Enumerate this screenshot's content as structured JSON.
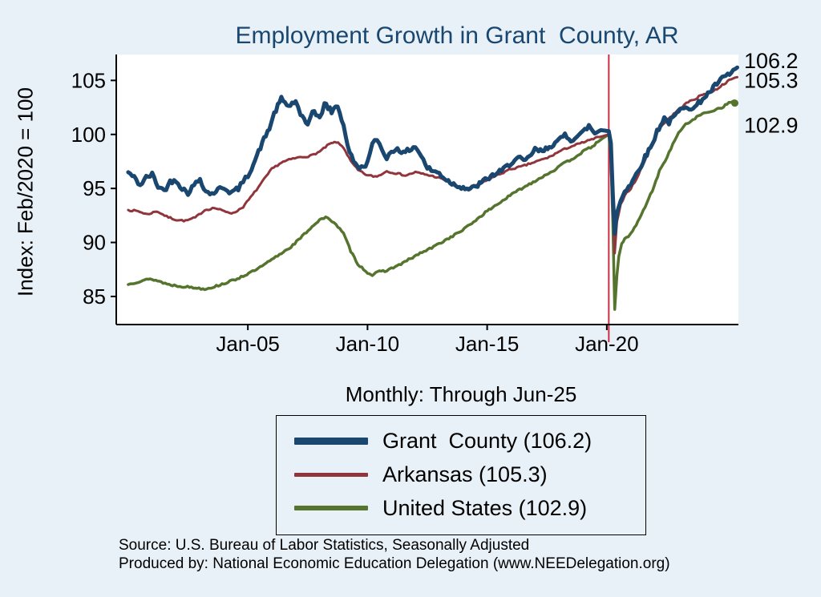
{
  "chart_data": {
    "type": "line",
    "title": "Employment Growth in Grant  County, AR",
    "subtitle": "Monthly: Through Jun-25",
    "ylabel": "Index: Feb/2020 = 100",
    "xlabel": "",
    "ylim": [
      82.4,
      107.4
    ],
    "xlim": [
      1999.5,
      2025.5
    ],
    "yticks": [
      85,
      90,
      95,
      100,
      105
    ],
    "xticks": [
      {
        "x": 2005,
        "label": "Jan-05"
      },
      {
        "x": 2010,
        "label": "Jan-10"
      },
      {
        "x": 2015,
        "label": "Jan-15"
      },
      {
        "x": 2020,
        "label": "Jan-20"
      }
    ],
    "grid": false,
    "legend_position": "bottom",
    "event_line": {
      "x": 2020.083,
      "color": "#cc2e44",
      "meaning": "Feb-2020 reference line"
    },
    "series": [
      {
        "name": "Grant  County",
        "legend_label": "Grant  County (106.2)",
        "end_label": "106.2",
        "end_value": 106.2,
        "color": "#1A476F",
        "width": 5,
        "noise": 0.22,
        "label_dy": -8,
        "points": [
          [
            2000.0,
            96.5
          ],
          [
            2000.25,
            96.0
          ],
          [
            2000.5,
            95.3
          ],
          [
            2000.75,
            96.0
          ],
          [
            2001.0,
            96.3
          ],
          [
            2001.25,
            95.2
          ],
          [
            2001.5,
            94.8
          ],
          [
            2001.75,
            95.6
          ],
          [
            2002.0,
            95.8
          ],
          [
            2002.25,
            95.0
          ],
          [
            2002.5,
            94.6
          ],
          [
            2002.75,
            95.3
          ],
          [
            2003.0,
            95.9
          ],
          [
            2003.25,
            94.7
          ],
          [
            2003.5,
            94.5
          ],
          [
            2003.75,
            94.9
          ],
          [
            2004.0,
            95.1
          ],
          [
            2004.3,
            94.6
          ],
          [
            2004.6,
            95.0
          ],
          [
            2004.8,
            95.6
          ],
          [
            2005.0,
            96.2
          ],
          [
            2005.3,
            97.6
          ],
          [
            2005.6,
            99.2
          ],
          [
            2005.9,
            100.6
          ],
          [
            2006.1,
            101.9
          ],
          [
            2006.4,
            103.3
          ],
          [
            2006.7,
            102.6
          ],
          [
            2007.0,
            103.1
          ],
          [
            2007.2,
            101.7
          ],
          [
            2007.5,
            100.9
          ],
          [
            2007.7,
            102.3
          ],
          [
            2008.0,
            101.4
          ],
          [
            2008.2,
            102.9
          ],
          [
            2008.5,
            102.1
          ],
          [
            2008.75,
            102.7
          ],
          [
            2009.0,
            100.8
          ],
          [
            2009.25,
            98.3
          ],
          [
            2009.5,
            97.2
          ],
          [
            2009.75,
            96.9
          ],
          [
            2010.0,
            97.4
          ],
          [
            2010.2,
            99.0
          ],
          [
            2010.4,
            99.6
          ],
          [
            2010.6,
            98.6
          ],
          [
            2010.8,
            97.9
          ],
          [
            2011.0,
            98.3
          ],
          [
            2011.25,
            98.8
          ],
          [
            2011.5,
            98.2
          ],
          [
            2011.75,
            98.6
          ],
          [
            2012.0,
            98.9
          ],
          [
            2012.25,
            98.0
          ],
          [
            2012.5,
            96.9
          ],
          [
            2012.75,
            96.6
          ],
          [
            2013.0,
            96.4
          ],
          [
            2013.3,
            95.8
          ],
          [
            2013.6,
            95.4
          ],
          [
            2014.0,
            95.1
          ],
          [
            2014.3,
            94.9
          ],
          [
            2014.6,
            95.3
          ],
          [
            2015.0,
            95.9
          ],
          [
            2015.3,
            96.3
          ],
          [
            2015.6,
            96.6
          ],
          [
            2016.0,
            97.4
          ],
          [
            2016.3,
            97.8
          ],
          [
            2016.6,
            97.5
          ],
          [
            2017.0,
            98.6
          ],
          [
            2017.3,
            98.4
          ],
          [
            2017.6,
            98.9
          ],
          [
            2018.0,
            99.4
          ],
          [
            2018.25,
            100.0
          ],
          [
            2018.5,
            99.5
          ],
          [
            2018.75,
            99.8
          ],
          [
            2019.0,
            100.2
          ],
          [
            2019.25,
            100.8
          ],
          [
            2019.5,
            100.1
          ],
          [
            2019.75,
            100.4
          ],
          [
            2020.083,
            100.3
          ],
          [
            2020.17,
            99.2
          ],
          [
            2020.25,
            94.5
          ],
          [
            2020.33,
            90.8
          ],
          [
            2020.42,
            92.7
          ],
          [
            2020.58,
            93.9
          ],
          [
            2020.75,
            94.8
          ],
          [
            2021.0,
            95.4
          ],
          [
            2021.3,
            96.6
          ],
          [
            2021.6,
            97.9
          ],
          [
            2021.9,
            99.1
          ],
          [
            2022.1,
            100.3
          ],
          [
            2022.4,
            101.5
          ],
          [
            2022.6,
            101.1
          ],
          [
            2023.0,
            102.1
          ],
          [
            2023.3,
            102.7
          ],
          [
            2023.6,
            102.3
          ],
          [
            2024.0,
            103.3
          ],
          [
            2024.3,
            103.9
          ],
          [
            2024.6,
            104.7
          ],
          [
            2024.9,
            105.3
          ],
          [
            2025.2,
            105.7
          ],
          [
            2025.45,
            106.2
          ]
        ]
      },
      {
        "name": "Arkansas",
        "legend_label": "Arkansas (105.3)",
        "end_label": "105.3",
        "end_value": 105.3,
        "color": "#90353B",
        "width": 3,
        "noise": 0.08,
        "label_dy": 4,
        "points": [
          [
            2000.0,
            93.0
          ],
          [
            2000.4,
            92.9
          ],
          [
            2000.8,
            92.6
          ],
          [
            2001.2,
            92.9
          ],
          [
            2001.6,
            92.4
          ],
          [
            2002.0,
            92.1
          ],
          [
            2002.4,
            92.0
          ],
          [
            2002.8,
            92.3
          ],
          [
            2003.2,
            93.0
          ],
          [
            2003.6,
            93.2
          ],
          [
            2004.0,
            92.9
          ],
          [
            2004.4,
            92.7
          ],
          [
            2004.8,
            93.3
          ],
          [
            2005.2,
            94.4
          ],
          [
            2005.6,
            95.6
          ],
          [
            2006.0,
            96.8
          ],
          [
            2006.4,
            97.4
          ],
          [
            2006.8,
            97.7
          ],
          [
            2007.2,
            97.9
          ],
          [
            2007.6,
            98.0
          ],
          [
            2008.0,
            98.4
          ],
          [
            2008.4,
            99.1
          ],
          [
            2008.7,
            99.3
          ],
          [
            2009.0,
            98.8
          ],
          [
            2009.3,
            97.5
          ],
          [
            2009.6,
            96.7
          ],
          [
            2010.0,
            96.2
          ],
          [
            2010.4,
            96.1
          ],
          [
            2010.8,
            96.6
          ],
          [
            2011.2,
            96.4
          ],
          [
            2011.6,
            96.2
          ],
          [
            2012.0,
            96.5
          ],
          [
            2012.4,
            96.3
          ],
          [
            2012.8,
            96.1
          ],
          [
            2013.2,
            95.8
          ],
          [
            2013.6,
            95.3
          ],
          [
            2014.0,
            95.0
          ],
          [
            2014.4,
            95.1
          ],
          [
            2014.8,
            95.5
          ],
          [
            2015.2,
            96.0
          ],
          [
            2015.6,
            96.4
          ],
          [
            2016.0,
            96.8
          ],
          [
            2016.4,
            97.0
          ],
          [
            2016.8,
            97.3
          ],
          [
            2017.2,
            97.6
          ],
          [
            2017.6,
            97.9
          ],
          [
            2018.0,
            98.4
          ],
          [
            2018.4,
            98.8
          ],
          [
            2018.8,
            99.1
          ],
          [
            2019.2,
            99.4
          ],
          [
            2019.6,
            99.7
          ],
          [
            2020.083,
            100.0
          ],
          [
            2020.17,
            99.0
          ],
          [
            2020.25,
            93.5
          ],
          [
            2020.33,
            89.0
          ],
          [
            2020.42,
            91.9
          ],
          [
            2020.58,
            93.5
          ],
          [
            2020.75,
            94.4
          ],
          [
            2021.0,
            95.0
          ],
          [
            2021.25,
            95.9
          ],
          [
            2021.5,
            97.2
          ],
          [
            2021.75,
            98.4
          ],
          [
            2022.0,
            99.6
          ],
          [
            2022.2,
            100.6
          ],
          [
            2022.5,
            101.3
          ],
          [
            2022.8,
            101.9
          ],
          [
            2023.1,
            102.5
          ],
          [
            2023.4,
            103.0
          ],
          [
            2023.7,
            103.3
          ],
          [
            2024.0,
            103.7
          ],
          [
            2024.3,
            103.9
          ],
          [
            2024.6,
            104.2
          ],
          [
            2024.9,
            104.7
          ],
          [
            2025.2,
            105.1
          ],
          [
            2025.45,
            105.3
          ]
        ]
      },
      {
        "name": "United States",
        "legend_label": "United States (102.9)",
        "end_label": "102.9",
        "end_value": 102.9,
        "color": "#55752F",
        "width": 3.5,
        "noise": 0.09,
        "label_dy": 28,
        "end_marker": [
          2025.45,
          102.9
        ],
        "points": [
          [
            2000.0,
            86.1
          ],
          [
            2000.3,
            86.3
          ],
          [
            2000.6,
            86.5
          ],
          [
            2001.0,
            86.6
          ],
          [
            2001.3,
            86.4
          ],
          [
            2001.7,
            86.1
          ],
          [
            2002.0,
            86.0
          ],
          [
            2002.4,
            85.9
          ],
          [
            2002.8,
            85.8
          ],
          [
            2003.2,
            85.7
          ],
          [
            2003.6,
            85.9
          ],
          [
            2004.0,
            86.2
          ],
          [
            2004.4,
            86.5
          ],
          [
            2004.8,
            86.9
          ],
          [
            2005.2,
            87.3
          ],
          [
            2005.6,
            87.8
          ],
          [
            2006.0,
            88.4
          ],
          [
            2006.4,
            89.0
          ],
          [
            2006.8,
            89.6
          ],
          [
            2007.2,
            90.4
          ],
          [
            2007.6,
            91.3
          ],
          [
            2008.0,
            92.1
          ],
          [
            2008.25,
            92.3
          ],
          [
            2008.6,
            91.9
          ],
          [
            2009.0,
            90.8
          ],
          [
            2009.3,
            89.2
          ],
          [
            2009.6,
            88.0
          ],
          [
            2010.0,
            87.2
          ],
          [
            2010.2,
            87.0
          ],
          [
            2010.5,
            87.3
          ],
          [
            2010.8,
            87.4
          ],
          [
            2011.0,
            87.6
          ],
          [
            2011.4,
            88.0
          ],
          [
            2011.8,
            88.5
          ],
          [
            2012.2,
            89.0
          ],
          [
            2012.6,
            89.4
          ],
          [
            2013.0,
            89.9
          ],
          [
            2013.4,
            90.4
          ],
          [
            2013.8,
            90.9
          ],
          [
            2014.2,
            91.5
          ],
          [
            2014.6,
            92.2
          ],
          [
            2015.0,
            92.9
          ],
          [
            2015.4,
            93.5
          ],
          [
            2015.8,
            94.1
          ],
          [
            2016.2,
            94.7
          ],
          [
            2016.6,
            95.2
          ],
          [
            2017.0,
            95.7
          ],
          [
            2017.4,
            96.2
          ],
          [
            2017.8,
            96.7
          ],
          [
            2018.2,
            97.3
          ],
          [
            2018.6,
            97.8
          ],
          [
            2019.0,
            98.4
          ],
          [
            2019.4,
            98.9
          ],
          [
            2019.8,
            99.6
          ],
          [
            2020.083,
            100.0
          ],
          [
            2020.17,
            98.0
          ],
          [
            2020.25,
            92.0
          ],
          [
            2020.33,
            83.8
          ],
          [
            2020.42,
            86.9
          ],
          [
            2020.5,
            88.7
          ],
          [
            2020.62,
            89.8
          ],
          [
            2020.75,
            90.3
          ],
          [
            2020.9,
            90.6
          ],
          [
            2021.0,
            90.8
          ],
          [
            2021.3,
            91.9
          ],
          [
            2021.6,
            93.3
          ],
          [
            2021.9,
            94.8
          ],
          [
            2022.2,
            96.6
          ],
          [
            2022.6,
            98.3
          ],
          [
            2023.0,
            100.2
          ],
          [
            2023.3,
            100.9
          ],
          [
            2023.6,
            101.4
          ],
          [
            2024.0,
            101.9
          ],
          [
            2024.4,
            102.2
          ],
          [
            2024.8,
            102.5
          ],
          [
            2025.1,
            102.9
          ],
          [
            2025.3,
            103.1
          ]
        ]
      }
    ]
  },
  "footer": {
    "line1": "Source: U.S. Bureau of Labor Statistics, Seasonally Adjusted",
    "line2": "Produced by: National Economic Education Delegation (www.NEEDelegation.org)"
  },
  "colors": {
    "background": "#e9f1f8",
    "title": "#1A476F",
    "axis": "#000000",
    "event_line": "#cc2e44"
  }
}
